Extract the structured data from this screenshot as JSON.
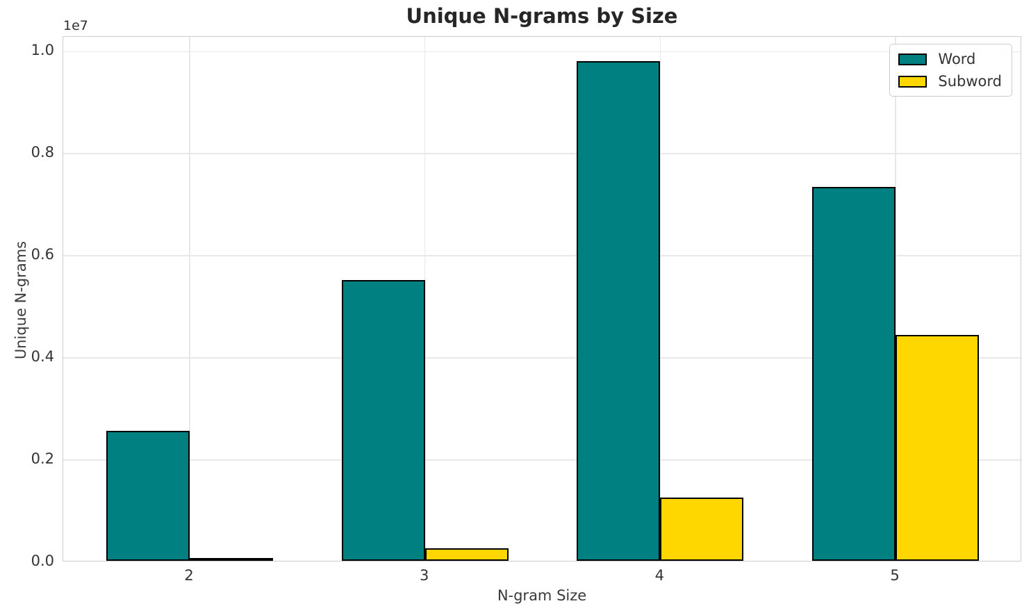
{
  "chart_data": {
    "type": "bar",
    "title": "Unique N-grams by Size",
    "xlabel": "N-gram Size",
    "ylabel": "Unique N-grams",
    "y_offset_text": "1e7",
    "categories": [
      "2",
      "3",
      "4",
      "5"
    ],
    "series": [
      {
        "name": "Word",
        "color": "#008080",
        "values": [
          2550000,
          5500000,
          9780000,
          7320000
        ]
      },
      {
        "name": "Subword",
        "color": "#FFD700",
        "values": [
          30000,
          240000,
          1240000,
          4430000
        ]
      }
    ],
    "ylim": [
      0,
      10290000
    ],
    "yticks": [
      0,
      2000000,
      4000000,
      6000000,
      8000000,
      10000000
    ],
    "ytick_labels": [
      "0.0",
      "0.2",
      "0.4",
      "0.6",
      "0.8",
      "1.0"
    ],
    "grid": true,
    "legend_position": "upper right",
    "bar_edge_color": "#000000",
    "background_color": "#ffffff",
    "grid_color": "#e8e8e8",
    "spine_color": "#cccccc"
  }
}
